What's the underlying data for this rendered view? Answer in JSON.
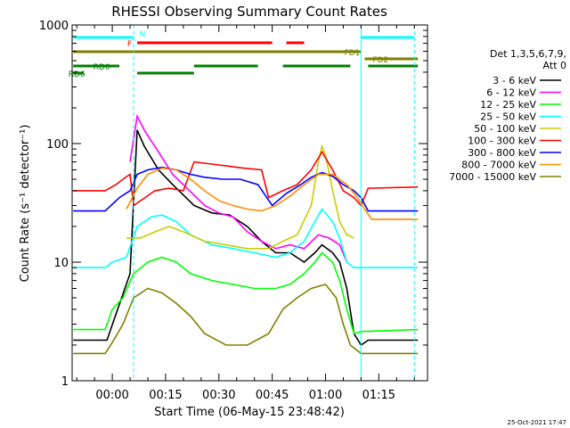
{
  "chart_data": {
    "type": "line",
    "title": "RHESSI Observing Summary Count Rates",
    "xlabel": "Start Time (06-May-15 23:48:42)",
    "ylabel": "Count Rate (s⁻¹ detector⁻¹)",
    "y_scale": "log",
    "ylim": [
      1,
      1000
    ],
    "xlim_minutes": [
      -11.3,
      88.7
    ],
    "x_ticks": [
      {
        "min": 0,
        "label": "00:00"
      },
      {
        "min": 15,
        "label": "00:15"
      },
      {
        "min": 30,
        "label": "00:30"
      },
      {
        "min": 45,
        "label": "00:45"
      },
      {
        "min": 60,
        "label": "01:00"
      },
      {
        "min": 75,
        "label": "01:15"
      }
    ],
    "y_ticks": [
      {
        "value": 1,
        "label": "1"
      },
      {
        "value": 10,
        "label": "10"
      },
      {
        "value": 100,
        "label": "100"
      },
      {
        "value": 1000,
        "label": "1000"
      }
    ],
    "legend_title": [
      "Det 1,3,5,6,7,9,",
      "Att 0"
    ],
    "legend_position": "right",
    "series": [
      {
        "name": "3 - 6 keV",
        "color": "#000000",
        "points": [
          [
            -11,
            2.2
          ],
          [
            -3,
            2.2
          ],
          [
            -1.5,
            2.2
          ],
          [
            5,
            8
          ],
          [
            7,
            130
          ],
          [
            9,
            95
          ],
          [
            13,
            60
          ],
          [
            17,
            45
          ],
          [
            23,
            30
          ],
          [
            28,
            26
          ],
          [
            33,
            25
          ],
          [
            38,
            20
          ],
          [
            42,
            15
          ],
          [
            46,
            12
          ],
          [
            50,
            12
          ],
          [
            54,
            10
          ],
          [
            57,
            12
          ],
          [
            59,
            14
          ],
          [
            62,
            12
          ],
          [
            64,
            10
          ],
          [
            66,
            6
          ],
          [
            68,
            2.5
          ],
          [
            70,
            2
          ],
          [
            72,
            2.2
          ],
          [
            86,
            2.2
          ]
        ]
      },
      {
        "name": "6 - 12 keV",
        "color": "#ff00ff",
        "points": [
          [
            5,
            70
          ],
          [
            7,
            170
          ],
          [
            9,
            130
          ],
          [
            13,
            85
          ],
          [
            17,
            55
          ],
          [
            21,
            42
          ],
          [
            26,
            30
          ],
          [
            30,
            26
          ],
          [
            34,
            24
          ],
          [
            38,
            18
          ],
          [
            42,
            15
          ],
          [
            46,
            13
          ],
          [
            50,
            14
          ],
          [
            54,
            13
          ],
          [
            58,
            17
          ],
          [
            61,
            16
          ],
          [
            64,
            14
          ],
          [
            66,
            10
          ]
        ]
      },
      {
        "name": "12 - 25 keV",
        "color": "#00ff00",
        "points": [
          [
            -11,
            2.7
          ],
          [
            -2,
            2.7
          ],
          [
            0,
            4
          ],
          [
            3,
            5
          ],
          [
            6,
            8
          ],
          [
            10,
            10
          ],
          [
            14,
            11
          ],
          [
            18,
            10
          ],
          [
            22,
            8
          ],
          [
            28,
            7
          ],
          [
            34,
            6.5
          ],
          [
            40,
            6
          ],
          [
            46,
            6
          ],
          [
            50,
            6.5
          ],
          [
            54,
            8
          ],
          [
            57,
            10
          ],
          [
            59,
            12
          ],
          [
            62,
            10
          ],
          [
            64,
            7
          ],
          [
            66,
            4
          ],
          [
            68,
            2.5
          ],
          [
            70,
            2.6
          ],
          [
            86,
            2.7
          ]
        ]
      },
      {
        "name": "25 - 50 keV",
        "color": "#00ffff",
        "points": [
          [
            -11,
            9
          ],
          [
            -2,
            9
          ],
          [
            0,
            10
          ],
          [
            4,
            11
          ],
          [
            7,
            20
          ],
          [
            11,
            24
          ],
          [
            14,
            25
          ],
          [
            18,
            22
          ],
          [
            22,
            17
          ],
          [
            28,
            14
          ],
          [
            34,
            13
          ],
          [
            40,
            12
          ],
          [
            46,
            11
          ],
          [
            50,
            12
          ],
          [
            54,
            15
          ],
          [
            57,
            22
          ],
          [
            59,
            28
          ],
          [
            62,
            22
          ],
          [
            64,
            16
          ],
          [
            66,
            10
          ],
          [
            68,
            9
          ],
          [
            72,
            9
          ],
          [
            86,
            9
          ]
        ]
      },
      {
        "name": "50 - 100 keV",
        "color": "#cccc00",
        "points": [
          [
            4,
            16
          ],
          [
            8,
            16
          ],
          [
            12,
            18
          ],
          [
            16,
            20
          ],
          [
            20,
            18
          ],
          [
            26,
            15
          ],
          [
            32,
            14
          ],
          [
            38,
            13
          ],
          [
            44,
            13
          ],
          [
            48,
            15
          ],
          [
            52,
            17
          ],
          [
            56,
            30
          ],
          [
            58,
            70
          ],
          [
            59,
            95
          ],
          [
            60,
            80
          ],
          [
            62,
            40
          ],
          [
            64,
            22
          ],
          [
            66,
            17
          ],
          [
            68,
            16
          ]
        ]
      },
      {
        "name": "100 - 300 keV",
        "color": "#ff0000",
        "points": [
          [
            -11,
            40
          ],
          [
            -2,
            40
          ],
          [
            1,
            45
          ],
          [
            3,
            50
          ],
          [
            5,
            55
          ],
          [
            6,
            30
          ],
          [
            8,
            33
          ],
          [
            12,
            40
          ],
          [
            16,
            42
          ],
          [
            20,
            40
          ],
          [
            23,
            70
          ],
          [
            30,
            66
          ],
          [
            37,
            62
          ],
          [
            42,
            60
          ],
          [
            44,
            35
          ],
          [
            48,
            40
          ],
          [
            52,
            45
          ],
          [
            56,
            60
          ],
          [
            59,
            85
          ],
          [
            62,
            60
          ],
          [
            65,
            40
          ],
          [
            68,
            35
          ],
          [
            70,
            30
          ],
          [
            72,
            42
          ],
          [
            86,
            43
          ]
        ]
      },
      {
        "name": "300 - 800 keV",
        "color": "#0000ff",
        "points": [
          [
            -11,
            27
          ],
          [
            -2,
            27
          ],
          [
            2,
            35
          ],
          [
            5,
            40
          ],
          [
            7,
            55
          ],
          [
            10,
            60
          ],
          [
            14,
            63
          ],
          [
            18,
            60
          ],
          [
            22,
            55
          ],
          [
            26,
            52
          ],
          [
            31,
            50
          ],
          [
            36,
            50
          ],
          [
            41,
            45
          ],
          [
            45,
            30
          ],
          [
            49,
            38
          ],
          [
            53,
            45
          ],
          [
            56,
            52
          ],
          [
            59,
            57
          ],
          [
            62,
            53
          ],
          [
            65,
            45
          ],
          [
            68,
            40
          ],
          [
            70,
            35
          ],
          [
            72,
            27
          ],
          [
            86,
            27
          ]
        ]
      },
      {
        "name": "800 - 7000 keV",
        "color": "#ff8c00",
        "points": [
          [
            4,
            28
          ],
          [
            7,
            42
          ],
          [
            10,
            55
          ],
          [
            14,
            62
          ],
          [
            18,
            60
          ],
          [
            22,
            50
          ],
          [
            26,
            40
          ],
          [
            30,
            33
          ],
          [
            34,
            30
          ],
          [
            38,
            28
          ],
          [
            42,
            27
          ],
          [
            46,
            30
          ],
          [
            50,
            36
          ],
          [
            54,
            45
          ],
          [
            58,
            55
          ],
          [
            62,
            55
          ],
          [
            66,
            45
          ],
          [
            69,
            35
          ],
          [
            71,
            28
          ],
          [
            73,
            23
          ],
          [
            86,
            23
          ]
        ]
      },
      {
        "name": "7000 - 15000 keV",
        "color": "#808000",
        "points": [
          [
            -11,
            1.7
          ],
          [
            -2,
            1.7
          ],
          [
            0,
            2.1
          ],
          [
            3,
            3
          ],
          [
            6,
            5
          ],
          [
            10,
            6
          ],
          [
            14,
            5.5
          ],
          [
            18,
            4.5
          ],
          [
            22,
            3.5
          ],
          [
            26,
            2.5
          ],
          [
            32,
            2
          ],
          [
            38,
            2
          ],
          [
            44,
            2.5
          ],
          [
            48,
            4
          ],
          [
            52,
            5
          ],
          [
            56,
            6
          ],
          [
            60,
            6.5
          ],
          [
            63,
            5
          ],
          [
            65,
            3
          ],
          [
            67,
            2
          ],
          [
            70,
            1.7
          ],
          [
            86,
            1.7
          ]
        ]
      }
    ],
    "annotations": [
      {
        "label": "N",
        "color": "#00ffff",
        "segments": [
          [
            -11,
            6
          ],
          [
            70,
            85
          ]
        ]
      },
      {
        "label": "F",
        "color": "#ff0000",
        "segments": [
          [
            7,
            45
          ],
          [
            49,
            54
          ]
        ]
      },
      {
        "label": "FD1",
        "color": "#808000",
        "segments": [
          [
            -11,
            70
          ]
        ]
      },
      {
        "label": "FD2",
        "color": "#808000",
        "segments": [
          [
            71,
            86
          ]
        ]
      },
      {
        "label": "RD0",
        "color": "#008000",
        "segments": [
          [
            -11,
            2
          ],
          [
            23,
            41
          ],
          [
            48,
            67
          ],
          [
            72,
            86
          ]
        ]
      },
      {
        "label": "RD6",
        "color": "#008000",
        "segments": [
          [
            -11,
            -8
          ],
          [
            7,
            23
          ]
        ]
      }
    ],
    "vertical_markers": [
      {
        "min": 6,
        "style": "dashed",
        "color": "#00ffff"
      },
      {
        "min": 70,
        "style": "solid",
        "color": "#00ffff"
      },
      {
        "min": 85,
        "style": "dashed",
        "color": "#00ffff"
      }
    ]
  },
  "footer": {
    "timestamp": "25-Oct-2021 17:47"
  }
}
